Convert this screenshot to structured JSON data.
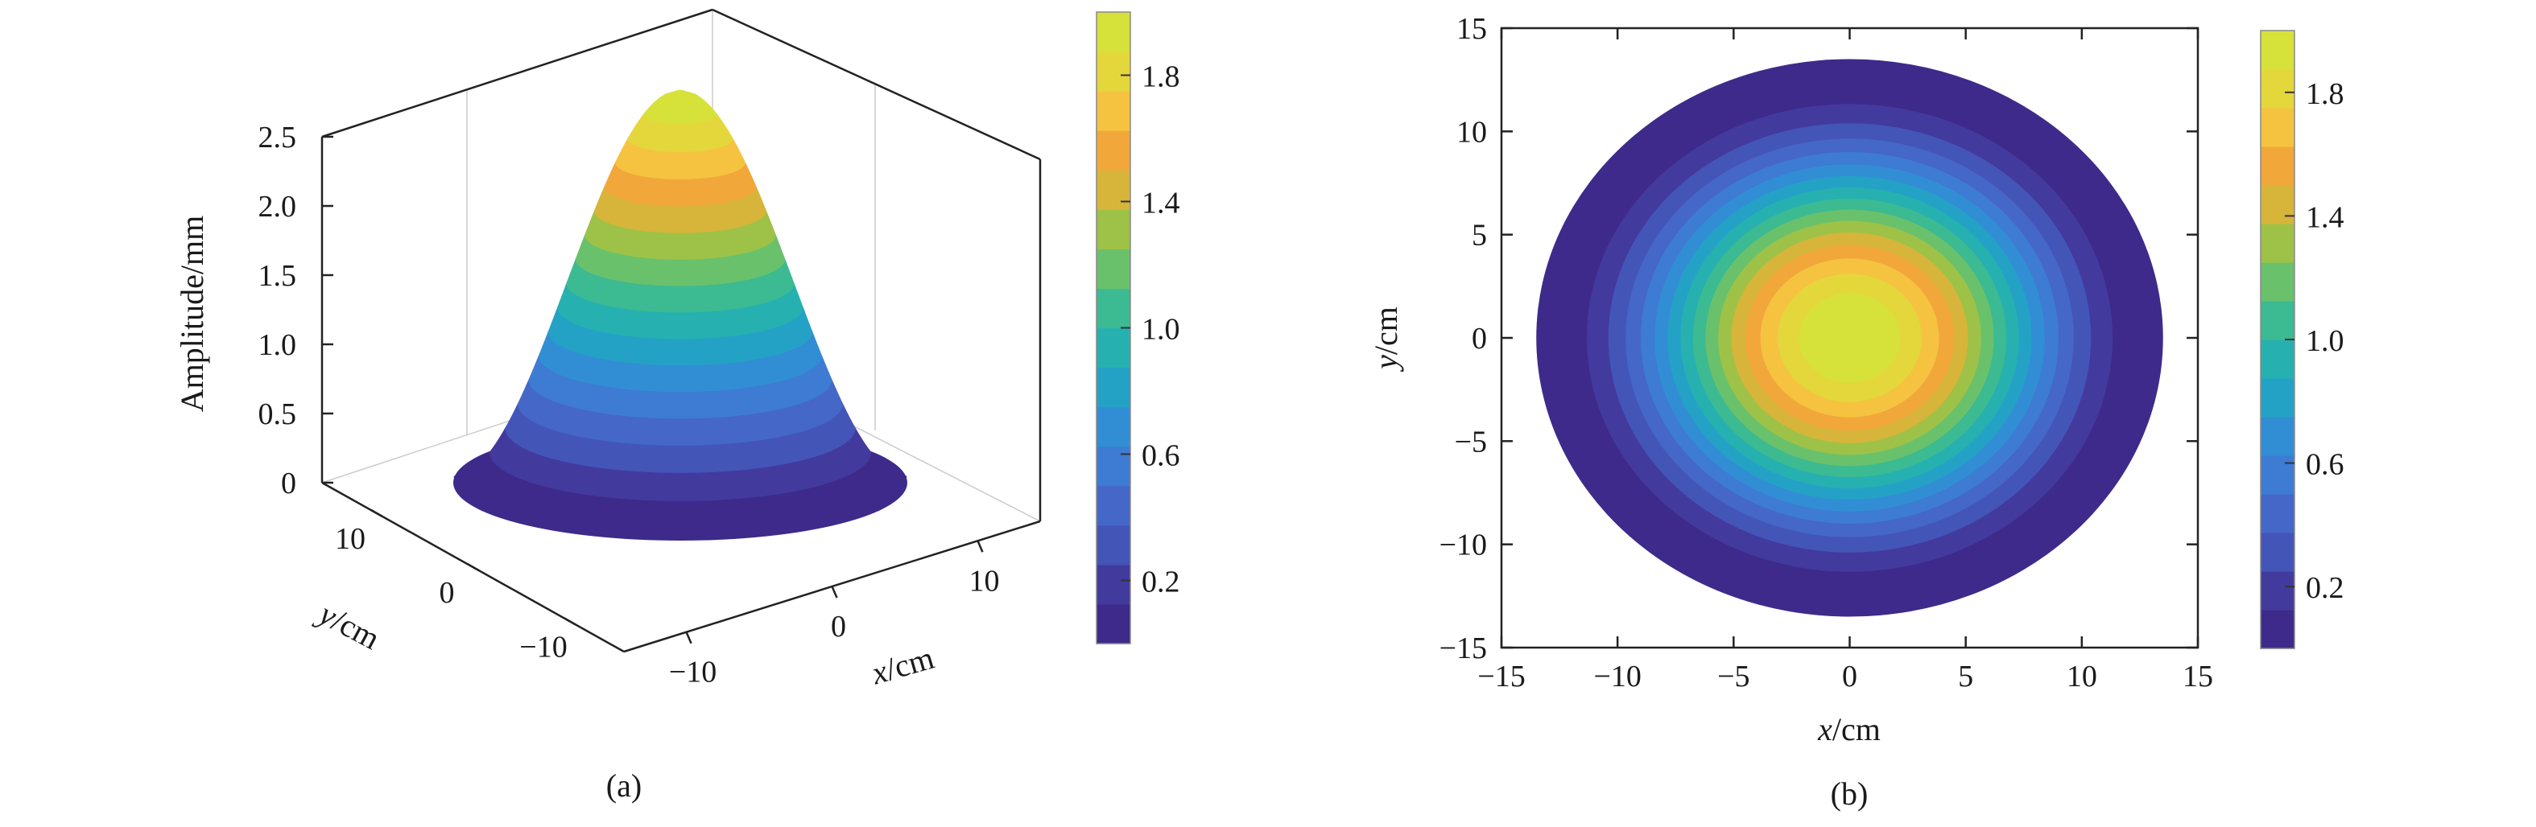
{
  "chart_data": [
    {
      "panel": "(a)",
      "type": "surface3d",
      "caption": "(a)",
      "zlabel": "Amplitude/mm",
      "xlabel_italic": "x",
      "xlabel_unit": "/cm",
      "ylabel_italic": "y",
      "ylabel_unit": "/cm",
      "zticks": [
        "0",
        "0.5",
        "1.0",
        "1.5",
        "2.0",
        "2.5"
      ],
      "xticks": [
        "−10",
        "0",
        "10"
      ],
      "yticks": [
        "10",
        "0",
        "−10"
      ],
      "xlim": [
        -15,
        15
      ],
      "ylim": [
        -15,
        15
      ],
      "zlim": [
        0,
        2.5
      ],
      "peak_amplitude": 2.0,
      "radius": 13.5,
      "colorbar_ticks": [
        "0.2",
        "0.6",
        "1.0",
        "1.4",
        "1.8"
      ],
      "colorbar_range": [
        0,
        2.0
      ]
    },
    {
      "panel": "(b)",
      "type": "heatmap",
      "caption": "(b)",
      "xlabel_italic": "x",
      "xlabel_unit": "/cm",
      "ylabel_italic": "y",
      "ylabel_unit": "/cm",
      "xticks": [
        "−15",
        "−10",
        "−5",
        "0",
        "5",
        "10",
        "15"
      ],
      "yticks": [
        "15",
        "10",
        "5",
        "0",
        "−5",
        "−10",
        "−15"
      ],
      "xlim": [
        -15,
        15
      ],
      "ylim": [
        -15,
        15
      ],
      "radius": 13.5,
      "peak_amplitude": 2.0,
      "colorbar_ticks": [
        "1.8",
        "1.4",
        "1.0",
        "0.6",
        "0.2"
      ],
      "colorbar_range": [
        0,
        2.0
      ]
    }
  ],
  "colormap": [
    "#3e2a8a",
    "#433a9e",
    "#4455b8",
    "#4467c8",
    "#3e7bd3",
    "#328ed4",
    "#24a2c6",
    "#26b1b0",
    "#3cba92",
    "#6ac16c",
    "#9ec247",
    "#d6b53a",
    "#f2a73a",
    "#f5c340",
    "#e4d73c",
    "#d6e23a"
  ]
}
